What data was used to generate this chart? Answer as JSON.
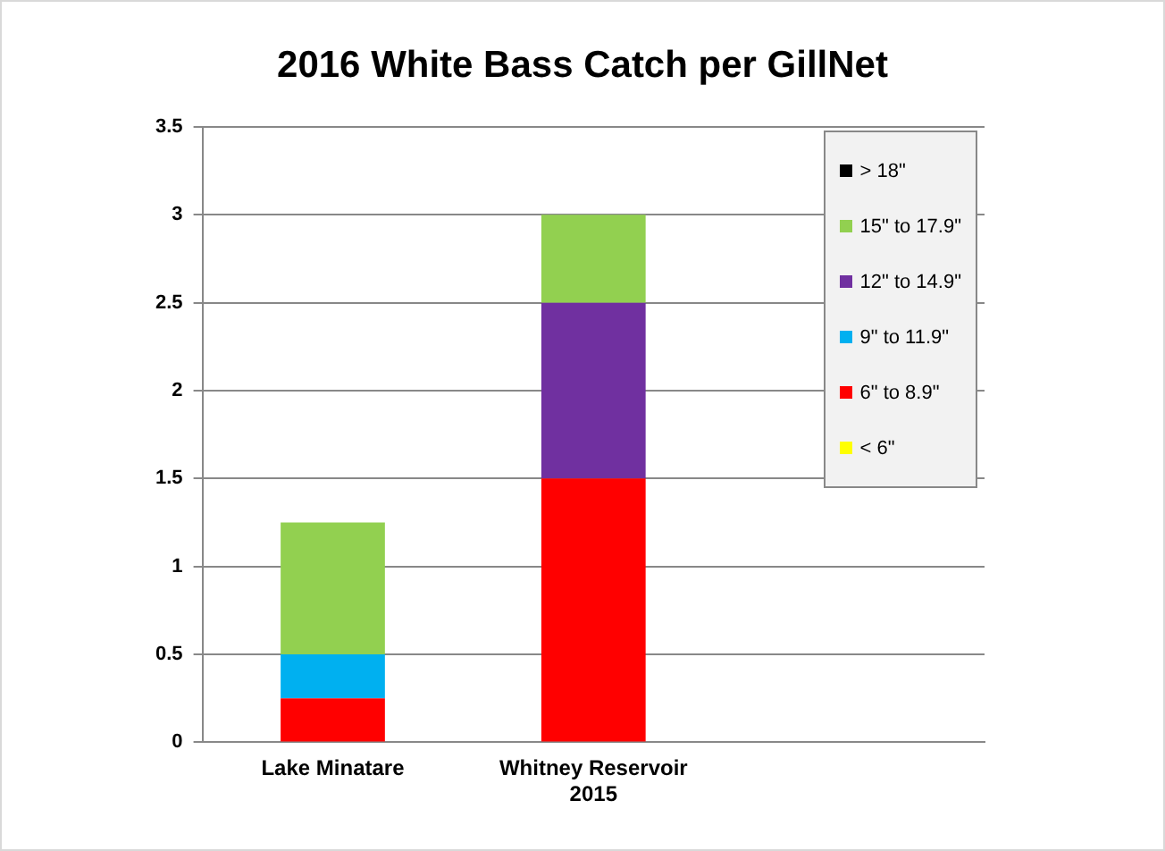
{
  "chart_data": {
    "type": "bar",
    "title": "2016 White Bass Catch per GillNet",
    "stacked": true,
    "categories": [
      "Lake Minatare",
      "Whitney Reservoir\n2015",
      null
    ],
    "series": [
      {
        "name": "< 6\"",
        "color": "#ffff00",
        "values": [
          0,
          0,
          null
        ]
      },
      {
        "name": "6\" to 8.9\"",
        "color": "#ff0000",
        "values": [
          0.25,
          1.5,
          null
        ]
      },
      {
        "name": "9\" to 11.9\"",
        "color": "#00b0f0",
        "values": [
          0.25,
          0,
          null
        ]
      },
      {
        "name": "12\" to 14.9\"",
        "color": "#7030a0",
        "values": [
          0,
          1,
          null
        ]
      },
      {
        "name": "15\" to 17.9\"",
        "color": "#92d050",
        "values": [
          0.75,
          0.5,
          null
        ]
      },
      {
        "name": "> 18\"",
        "color": "#000000",
        "values": [
          0,
          0,
          null
        ]
      }
    ],
    "ylim": [
      0,
      3.5
    ],
    "yticks": [
      0,
      0.5,
      1,
      1.5,
      2,
      2.5,
      3,
      3.5
    ],
    "grid": "y",
    "legend": "top right"
  }
}
